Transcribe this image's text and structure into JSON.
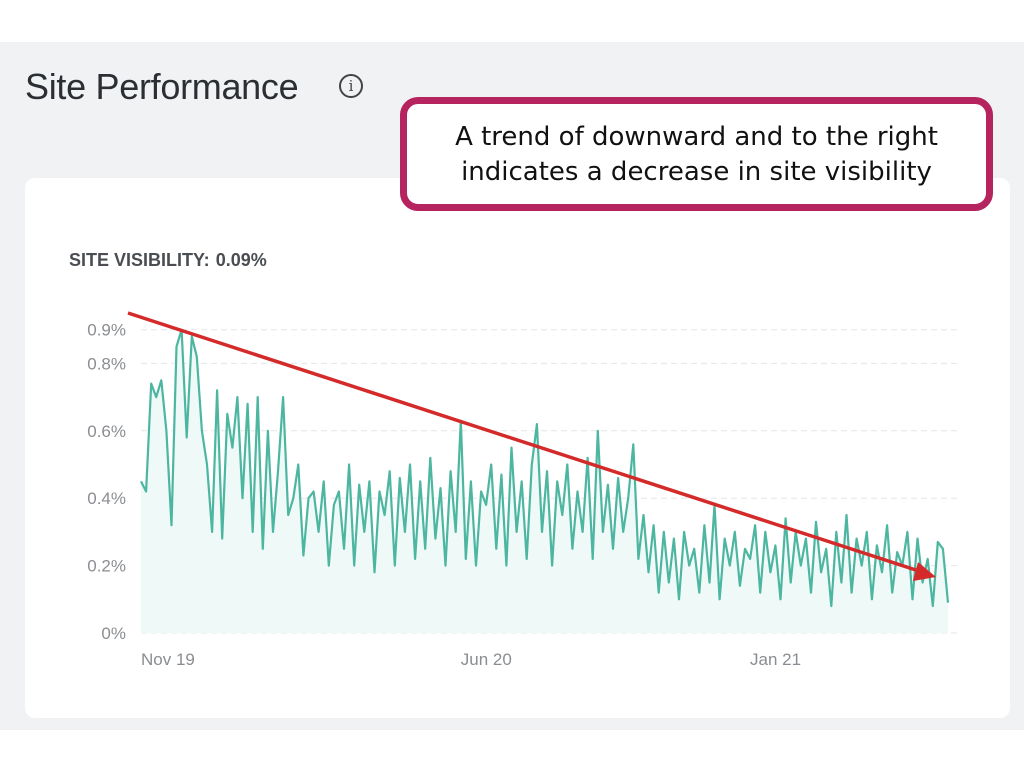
{
  "header": {
    "title": "Site Performance",
    "info_icon": "info-circle-icon"
  },
  "callout": {
    "line1": "A trend of downward and to the right",
    "line2": "indicates a decrease in site visibility",
    "border_color": "#b5245f"
  },
  "metric": {
    "label": "SITE VISIBILITY:",
    "value": "0.09%"
  },
  "chart_data": {
    "type": "area",
    "ylim": [
      0,
      0.9
    ],
    "y_ticks": [
      {
        "value": 0,
        "label": "0%"
      },
      {
        "value": 0.2,
        "label": "0.2%"
      },
      {
        "value": 0.4,
        "label": "0.4%"
      },
      {
        "value": 0.6,
        "label": "0.6%"
      },
      {
        "value": 0.8,
        "label": "0.8%"
      },
      {
        "value": 0.9,
        "label": "0.9%"
      }
    ],
    "x_ticks": [
      {
        "index": 0,
        "label": "Nov 19"
      },
      {
        "index": 63,
        "label": "Jun 20"
      },
      {
        "index": 120,
        "label": "Jan 21"
      }
    ],
    "grid": true,
    "line_color": "#4db6a0",
    "fill_color": "#eef9f8",
    "values": [
      0.45,
      0.42,
      0.74,
      0.7,
      0.75,
      0.6,
      0.32,
      0.85,
      0.9,
      0.58,
      0.88,
      0.82,
      0.6,
      0.5,
      0.3,
      0.72,
      0.28,
      0.65,
      0.55,
      0.7,
      0.4,
      0.68,
      0.3,
      0.7,
      0.25,
      0.6,
      0.3,
      0.48,
      0.7,
      0.35,
      0.4,
      0.5,
      0.23,
      0.4,
      0.42,
      0.3,
      0.45,
      0.2,
      0.38,
      0.42,
      0.25,
      0.5,
      0.2,
      0.44,
      0.3,
      0.45,
      0.18,
      0.42,
      0.35,
      0.48,
      0.2,
      0.46,
      0.3,
      0.5,
      0.22,
      0.45,
      0.25,
      0.52,
      0.28,
      0.43,
      0.2,
      0.48,
      0.3,
      0.63,
      0.22,
      0.45,
      0.2,
      0.42,
      0.38,
      0.5,
      0.25,
      0.47,
      0.2,
      0.55,
      0.3,
      0.45,
      0.22,
      0.5,
      0.62,
      0.3,
      0.48,
      0.2,
      0.45,
      0.35,
      0.5,
      0.25,
      0.42,
      0.3,
      0.52,
      0.22,
      0.6,
      0.3,
      0.44,
      0.25,
      0.46,
      0.3,
      0.4,
      0.56,
      0.22,
      0.35,
      0.18,
      0.32,
      0.12,
      0.3,
      0.15,
      0.28,
      0.1,
      0.3,
      0.2,
      0.25,
      0.12,
      0.32,
      0.15,
      0.38,
      0.1,
      0.28,
      0.2,
      0.3,
      0.14,
      0.25,
      0.22,
      0.32,
      0.12,
      0.3,
      0.18,
      0.26,
      0.1,
      0.34,
      0.15,
      0.3,
      0.2,
      0.28,
      0.12,
      0.33,
      0.18,
      0.25,
      0.08,
      0.3,
      0.15,
      0.35,
      0.12,
      0.28,
      0.2,
      0.3,
      0.1,
      0.26,
      0.18,
      0.32,
      0.12,
      0.24,
      0.2,
      0.3,
      0.1,
      0.28,
      0.15,
      0.22,
      0.08,
      0.27,
      0.25,
      0.09
    ],
    "trend_arrow": {
      "color": "#d42a2a",
      "direction": "down-right"
    }
  }
}
